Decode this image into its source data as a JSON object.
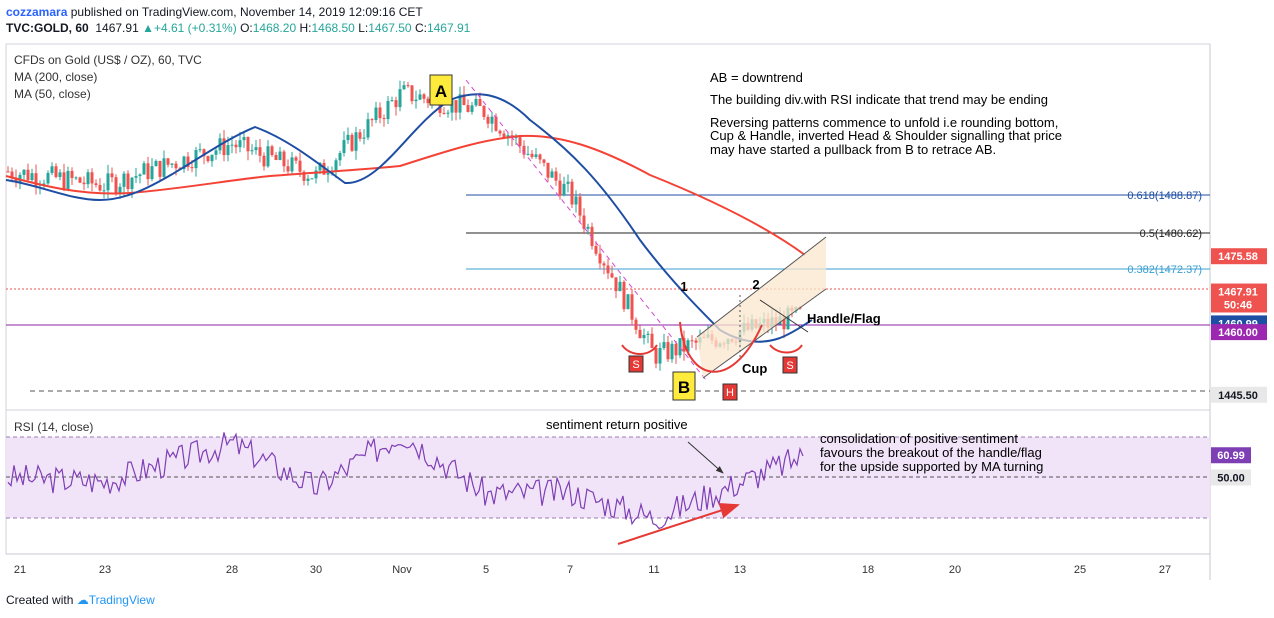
{
  "header": {
    "author": "cozzamara",
    "published_text": "published on TradingView.com, November 14, 2019 12:09:16 CET",
    "symbol": "TVC:GOLD, 60",
    "last": "1467.91",
    "change": "+4.61 (+0.31%)",
    "open_label": "O:",
    "open": "1468.20",
    "high_label": "H:",
    "high": "1468.50",
    "low_label": "L:",
    "low": "1467.50",
    "close_label": "C:",
    "close": "1467.91"
  },
  "footer": {
    "created_with": "Created with",
    "brand": "TradingView"
  },
  "legend": {
    "title": "CFDs on Gold (US$ / OZ), 60, TVC",
    "ma200": "MA (200, close)",
    "ma50": "MA (50, close)",
    "rsi": "RSI (14, close)"
  },
  "annotations": {
    "ab_text": "AB = downtrend",
    "line2": "The building div.with RSI indicate that trend may be ending",
    "line3": "Reversing patterns commence to unfold i.e rounding bottom,",
    "line4": "Cup & Handle, inverted Head & Shoulder signalling that price",
    "line5": "may have started a pullback from B to retrace AB.",
    "label_a": "A",
    "label_b": "B",
    "label_1": "1",
    "label_2": "2",
    "label_s": "S",
    "label_h": "H",
    "label_cup": "Cup",
    "label_handle": "Handle/Flag",
    "rsi_note": "sentiment return positive",
    "rsi_c1": "consolidation of positive sentiment",
    "rsi_c2": "favours the breakout of the handle/flag",
    "rsi_c3": "for the upside supported by MA turning"
  },
  "colors": {
    "up": "#26a69a",
    "down": "#ef5350",
    "ma200": "#f44336",
    "ma50": "#1e4ea3",
    "rsi": "#7e3fb5",
    "accent_tv": "#2196f3"
  },
  "chart_data": {
    "type": "line",
    "title": "CFDs on Gold (US$ / OZ), 60, TVC",
    "price_axis": {
      "ylim": [
        1440,
        1520
      ],
      "labels": [
        {
          "text": "1475.58",
          "value": 1475.58,
          "bg": "#ef5350"
        },
        {
          "text": "1467.91",
          "value": 1467.91,
          "bg": "#ef5350"
        },
        {
          "text": "50:46",
          "value": 1465.1,
          "bg": "#ef5350"
        },
        {
          "text": "1460.99",
          "value": 1460.99,
          "bg": "#1e4ea3"
        },
        {
          "text": "1460.00",
          "value": 1459.1,
          "bg": "#9c27b0"
        },
        {
          "text": "1445.50",
          "value": 1445.5,
          "bg": "#e8e8e8",
          "fg": "#131722"
        }
      ]
    },
    "rsi_axis": {
      "ylim": [
        20,
        80
      ],
      "labels": [
        {
          "text": "60.99",
          "value": 60.99,
          "bg": "#7e3fb5"
        },
        {
          "text": "50.00",
          "value": 50,
          "bg": "#e8e8e8",
          "fg": "#131722"
        }
      ]
    },
    "x_ticks": [
      "21",
      "23",
      "28",
      "30",
      "Nov",
      "5",
      "7",
      "11",
      "13",
      "18",
      "20",
      "25",
      "27"
    ],
    "fib_levels": [
      {
        "label": "0.618(1488.87)",
        "value": 1488.87
      },
      {
        "label": "0.5(1480.62)",
        "value": 1480.62
      },
      {
        "label": "0.382(1472.37)",
        "value": 1472.37
      }
    ],
    "series": [
      {
        "name": "CFDs on Gold (US$ / OZ), 60, TVC",
        "x": [
          "21",
          "23",
          "28",
          "30",
          "Nov",
          "5",
          "7",
          "11",
          "13"
        ],
        "values": [
          1494,
          1491,
          1500,
          1493,
          1511,
          1507,
          1489,
          1454,
          1463
        ]
      },
      {
        "name": "MA (200, close)",
        "values": [
          1493,
          1490,
          1494,
          1496,
          1497,
          1501,
          1497,
          1485,
          1475
        ]
      },
      {
        "name": "MA (50, close)",
        "values": [
          1493,
          1489,
          1503,
          1494,
          1508,
          1509,
          1483,
          1460,
          1463
        ]
      },
      {
        "name": "RSI (14, close)",
        "values": [
          50,
          48,
          67,
          45,
          72,
          42,
          43,
          30,
          61
        ]
      }
    ]
  }
}
